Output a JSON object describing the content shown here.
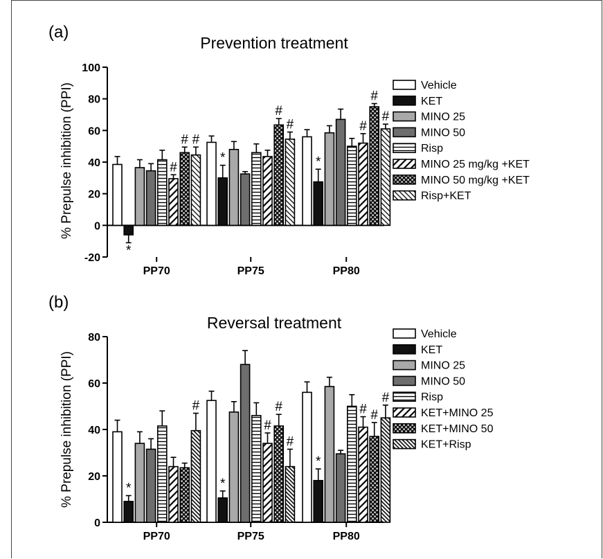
{
  "chart_data": [
    {
      "type": "bar",
      "panel_label": "(a)",
      "title": "Prevention treatment",
      "ylabel": "% Prepulse inhibition (PPI)",
      "xlabel": "",
      "ylim": [
        -20,
        100
      ],
      "yticks": [
        -20,
        0,
        20,
        40,
        60,
        80,
        100
      ],
      "categories": [
        "PP70",
        "PP75",
        "PP80"
      ],
      "legend_position": "right",
      "grid": false,
      "series": [
        {
          "name": "Vehicle",
          "pattern": "white",
          "values": [
            38.5,
            52.5,
            56
          ],
          "errors": [
            5,
            4,
            4.5
          ],
          "marks": [
            "",
            "",
            ""
          ]
        },
        {
          "name": "KET",
          "pattern": "black",
          "values": [
            -6,
            30,
            27.5
          ],
          "errors": [
            5,
            8,
            8
          ],
          "marks": [
            "*",
            "*",
            "*"
          ]
        },
        {
          "name": "MINO 25",
          "pattern": "lightgray",
          "values": [
            36.5,
            48,
            58.5
          ],
          "errors": [
            5,
            5,
            4.5
          ],
          "marks": [
            "",
            "",
            ""
          ]
        },
        {
          "name": "MINO 50",
          "pattern": "darkgray",
          "values": [
            34.5,
            32.5,
            67
          ],
          "errors": [
            4.5,
            1.5,
            6.5
          ],
          "marks": [
            "",
            "",
            ""
          ]
        },
        {
          "name": "Risp",
          "pattern": "hlines",
          "values": [
            41.5,
            46,
            50
          ],
          "errors": [
            6,
            5.5,
            5
          ],
          "marks": [
            "",
            "",
            ""
          ]
        },
        {
          "name": "MINO 25 mg/kg +KET",
          "pattern": "bslash",
          "values": [
            29.5,
            43.5,
            52
          ],
          "errors": [
            2.5,
            4,
            6
          ],
          "marks": [
            "#",
            "",
            "#"
          ]
        },
        {
          "name": "MINO 50 mg/kg +KET",
          "pattern": "dots",
          "values": [
            46,
            63.5,
            75
          ],
          "errors": [
            3.5,
            4,
            2
          ],
          "marks": [
            "#",
            "#",
            "#"
          ]
        },
        {
          "name": "Risp+KET",
          "pattern": "fslash",
          "values": [
            44.5,
            54.5,
            61
          ],
          "errors": [
            5,
            4.5,
            3
          ],
          "marks": [
            "#",
            "#",
            "#"
          ]
        }
      ]
    },
    {
      "type": "bar",
      "panel_label": "(b)",
      "title": "Reversal treatment",
      "ylabel": "% Prepulse inhibition (PPI)",
      "xlabel": "",
      "ylim": [
        0,
        80
      ],
      "yticks": [
        0,
        20,
        40,
        60,
        80
      ],
      "categories": [
        "PP70",
        "PP75",
        "PP80"
      ],
      "legend_position": "right",
      "grid": false,
      "series": [
        {
          "name": "Vehicle",
          "pattern": "white",
          "values": [
            39,
            52.5,
            56
          ],
          "errors": [
            5,
            4,
            4.5
          ],
          "marks": [
            "",
            "",
            ""
          ]
        },
        {
          "name": "KET",
          "pattern": "black",
          "values": [
            9,
            10.5,
            18
          ],
          "errors": [
            2.5,
            3,
            5
          ],
          "marks": [
            "*",
            "*",
            "*"
          ]
        },
        {
          "name": "MINO 25",
          "pattern": "lightgray",
          "values": [
            34,
            47.5,
            58.5
          ],
          "errors": [
            5,
            4.5,
            4
          ],
          "marks": [
            "",
            "",
            ""
          ]
        },
        {
          "name": "MINO 50",
          "pattern": "darkgray",
          "values": [
            31.5,
            68,
            29.5
          ],
          "errors": [
            4.5,
            6,
            1.5
          ],
          "marks": [
            "",
            "",
            ""
          ]
        },
        {
          "name": "Risp",
          "pattern": "hlines",
          "values": [
            41.5,
            46,
            50
          ],
          "errors": [
            6.5,
            5.5,
            5
          ],
          "marks": [
            "",
            "",
            ""
          ]
        },
        {
          "name": "KET+MINO 25",
          "pattern": "bslash",
          "values": [
            24,
            34,
            41
          ],
          "errors": [
            4,
            4.5,
            4.5
          ],
          "marks": [
            "",
            "#",
            "#"
          ]
        },
        {
          "name": "KET+MINO 50",
          "pattern": "dots",
          "values": [
            23.5,
            41.5,
            37
          ],
          "errors": [
            2,
            5,
            6
          ],
          "marks": [
            "",
            "#",
            "#"
          ]
        },
        {
          "name": "KET+Risp",
          "pattern": "dense",
          "values": [
            39.5,
            24,
            45
          ],
          "errors": [
            7.5,
            7.5,
            5.5
          ],
          "marks": [
            "#",
            "#",
            "#"
          ]
        }
      ]
    }
  ]
}
